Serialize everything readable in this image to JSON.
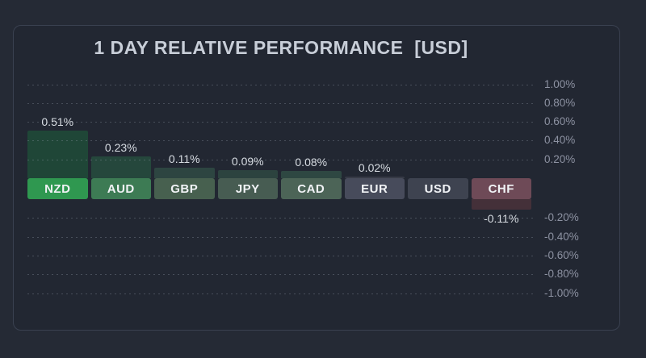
{
  "chart_data": {
    "type": "bar",
    "title": "1 DAY RELATIVE PERFORMANCE  [USD]",
    "categories": [
      "NZD",
      "AUD",
      "GBP",
      "JPY",
      "CAD",
      "EUR",
      "USD",
      "CHF"
    ],
    "values": [
      0.51,
      0.23,
      0.11,
      0.09,
      0.08,
      0.02,
      0.0,
      -0.11
    ],
    "value_labels": [
      "0.51%",
      "0.23%",
      "0.11%",
      "0.09%",
      "0.08%",
      "0.02%",
      "",
      "-0.11%"
    ],
    "unit": "%",
    "xlabel": "",
    "ylabel": "",
    "ylim": [
      -1.0,
      1.0
    ],
    "yaxis_side": "right",
    "grid": "dotted-horizontal",
    "legend": "none",
    "yticks": [
      {
        "value": 1.0,
        "label": "1.00%"
      },
      {
        "value": 0.8,
        "label": "0.80%"
      },
      {
        "value": 0.6,
        "label": "0.60%"
      },
      {
        "value": 0.4,
        "label": "0.40%"
      },
      {
        "value": 0.2,
        "label": "0.20%"
      },
      {
        "value": -0.2,
        "label": "-0.20%"
      },
      {
        "value": -0.4,
        "label": "-0.40%"
      },
      {
        "value": -0.6,
        "label": "-0.60%"
      },
      {
        "value": -0.8,
        "label": "-0.80%"
      },
      {
        "value": -1.0,
        "label": "-1.00%"
      }
    ]
  },
  "chart_style": {
    "page_bg": "#252a35",
    "card_bg": "#222732",
    "card_border": "#3a4150",
    "title_color": "#c8ced8",
    "grid_color": "#97a0b0",
    "tick_color": "#8d92a2",
    "value_color": "#d7dce2",
    "tag_text_color": "#f1f3f6",
    "bars": [
      {
        "code": "NZD",
        "tag_bg": "#2f9850",
        "bar_fill": "#1f4637"
      },
      {
        "code": "AUD",
        "tag_bg": "#3d7b54",
        "bar_fill": "#25473c"
      },
      {
        "code": "GBP",
        "tag_bg": "#47604f",
        "bar_fill": "#2d4541"
      },
      {
        "code": "JPY",
        "tag_bg": "#475c52",
        "bar_fill": "#2c433f"
      },
      {
        "code": "CAD",
        "tag_bg": "#4c6457",
        "bar_fill": "#2e4742"
      },
      {
        "code": "EUR",
        "tag_bg": "#474b5b",
        "bar_fill": "#363a46"
      },
      {
        "code": "USD",
        "tag_bg": "#3e4350",
        "bar_fill": "none"
      },
      {
        "code": "CHF",
        "tag_bg": "#6e4a57",
        "bar_fill": "#443039"
      }
    ]
  }
}
